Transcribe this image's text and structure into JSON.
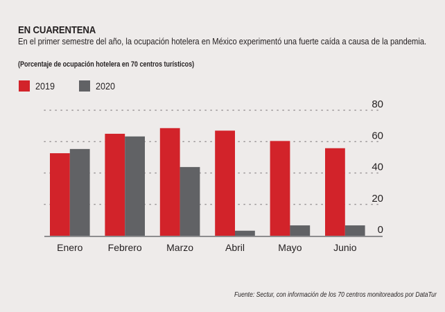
{
  "header": {
    "title": "EN CUARENTENA",
    "subtitle": "En el primer semestre del año, la ocupación hotelera en México experimentó una fuerte caída a causa de la pandemia.",
    "unit_note": "(Porcentaje de ocupación hotelera en 70 centros turísticos)"
  },
  "legend": [
    {
      "label": "2019",
      "color": "#d2232a"
    },
    {
      "label": "2020",
      "color": "#616265"
    }
  ],
  "source": "Fuente: Sectur, con información de los 70 centros monitoreados por DataTur",
  "chart_data": {
    "type": "bar",
    "title": "EN CUARENTENA",
    "subtitle": "(Porcentaje de ocupación hotelera en 70 centros turísticos)",
    "xlabel": "",
    "ylabel": "",
    "categories": [
      "Enero",
      "Febrero",
      "Marzo",
      "Abril",
      "Mayo",
      "Junio"
    ],
    "series": [
      {
        "name": "2019",
        "color": "#d2232a",
        "values": [
          52.6,
          65.0,
          68.6,
          67.0,
          60.4,
          55.8
        ]
      },
      {
        "name": "2020",
        "color": "#616265",
        "values": [
          55.3,
          63.3,
          43.8,
          3.2,
          6.6,
          6.6
        ]
      }
    ],
    "ylim": [
      0,
      80
    ],
    "yticks": [
      0,
      20,
      40,
      60,
      80
    ],
    "grid": true,
    "grid_style": "dotted",
    "y_axis_side": "right",
    "legend_position": "top-left"
  }
}
